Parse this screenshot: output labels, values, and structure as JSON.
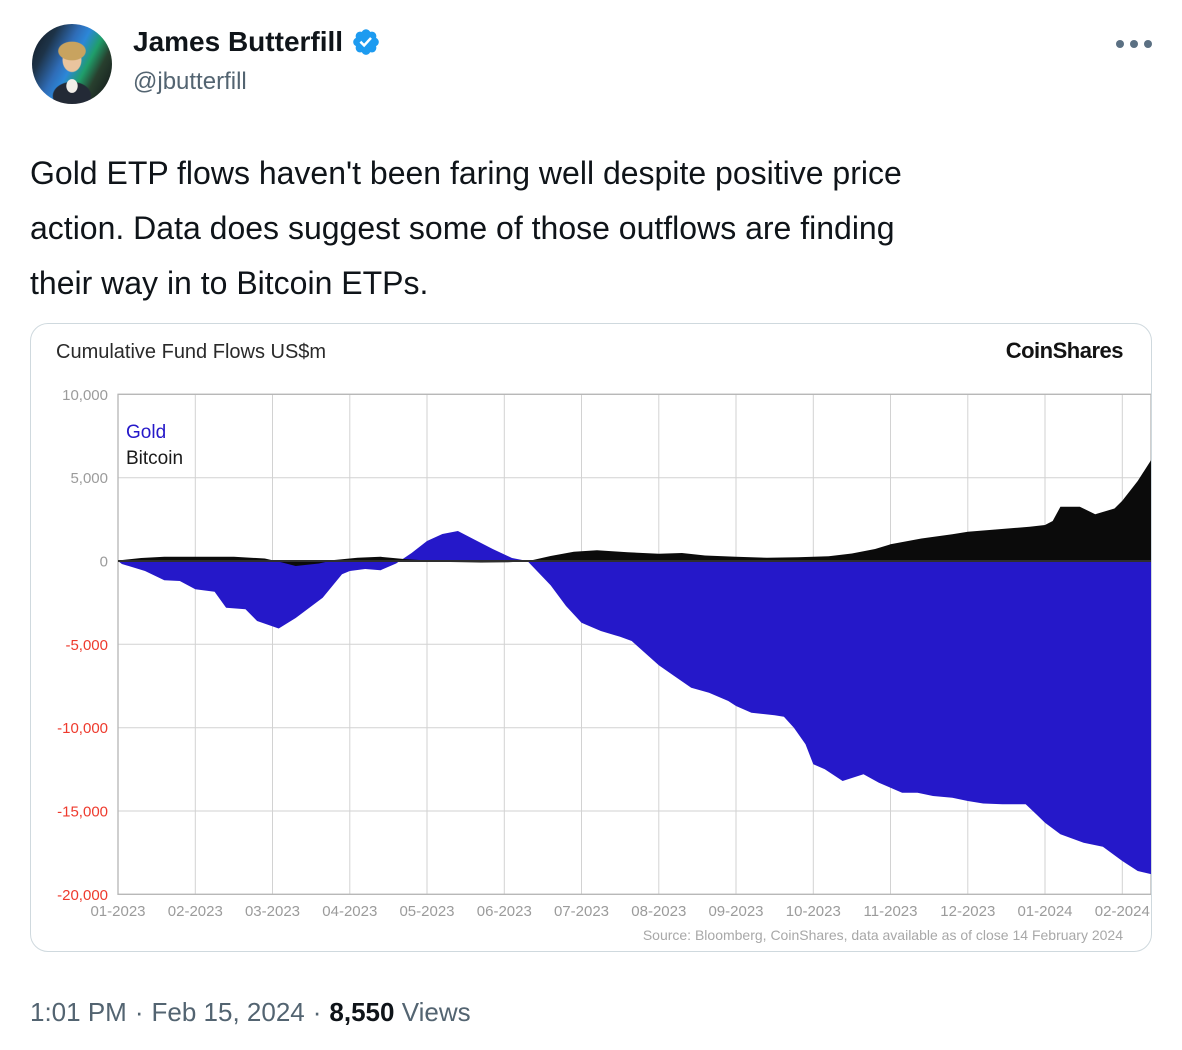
{
  "tweet": {
    "author": {
      "name": "James Butterfill",
      "handle": "@jbutterfill"
    },
    "verified": true,
    "body_lines": [
      "Gold ETP flows haven't been faring well despite positive price",
      "action. Data does suggest some of those outflows are finding",
      "their way in to Bitcoin ETPs."
    ],
    "footer": {
      "time": "1:01 PM",
      "separator": "·",
      "date": "Feb 15, 2024",
      "views_count": "8,550",
      "views_label": "Views"
    }
  },
  "chart_card": {
    "title": "Cumulative Fund Flows US$m",
    "brand": "CoinShares",
    "source_note": "Source: Bloomberg, CoinShares, data available as of close 14 February 2024"
  },
  "chart_data": {
    "type": "area",
    "title": "Cumulative Fund Flows US$m",
    "unit": "US$m",
    "grid": true,
    "legend_position": "top-left",
    "x_tick_labels": [
      "01-2023",
      "02-2023",
      "03-2023",
      "04-2023",
      "05-2023",
      "06-2023",
      "07-2023",
      "08-2023",
      "09-2023",
      "10-2023",
      "11-2023",
      "12-2023",
      "01-2024",
      "02-2024"
    ],
    "y_ticks": [
      10000,
      5000,
      0,
      -5000,
      -10000,
      -15000,
      -20000
    ],
    "ylim": [
      -20000,
      10000
    ],
    "x_max_index": 13.38,
    "axis_colors": {
      "positive_label": "#9b9b9b",
      "negative_label": "#ee3a2d",
      "grid": "#d2d2d2",
      "border": "#b5b5b5",
      "zero_line": "#2e2e2e"
    },
    "series": [
      {
        "name": "Gold",
        "color": "#2518C9",
        "legend_color": "#2518C9",
        "points": [
          [
            0,
            0
          ],
          [
            0.05,
            -180
          ],
          [
            0.35,
            -600
          ],
          [
            0.6,
            -1150
          ],
          [
            0.8,
            -1200
          ],
          [
            1,
            -1700
          ],
          [
            1.25,
            -1850
          ],
          [
            1.4,
            -2800
          ],
          [
            1.65,
            -2900
          ],
          [
            1.8,
            -3600
          ],
          [
            2.08,
            -4050
          ],
          [
            2.3,
            -3420
          ],
          [
            2.65,
            -2200
          ],
          [
            2.9,
            -800
          ],
          [
            3,
            -600
          ],
          [
            3.2,
            -480
          ],
          [
            3.4,
            -550
          ],
          [
            3.6,
            -150
          ],
          [
            3.8,
            480
          ],
          [
            4,
            1200
          ],
          [
            4.2,
            1620
          ],
          [
            4.4,
            1800
          ],
          [
            4.6,
            1320
          ],
          [
            4.85,
            720
          ],
          [
            5.1,
            180
          ],
          [
            5.3,
            0
          ],
          [
            5.6,
            -1450
          ],
          [
            5.8,
            -2700
          ],
          [
            6,
            -3700
          ],
          [
            6.25,
            -4200
          ],
          [
            6.5,
            -4550
          ],
          [
            6.65,
            -4800
          ],
          [
            7,
            -6250
          ],
          [
            7.2,
            -6900
          ],
          [
            7.42,
            -7600
          ],
          [
            7.65,
            -7900
          ],
          [
            7.9,
            -8400
          ],
          [
            8,
            -8700
          ],
          [
            8.2,
            -9100
          ],
          [
            8.5,
            -9250
          ],
          [
            8.62,
            -9350
          ],
          [
            8.75,
            -10000
          ],
          [
            8.9,
            -11000
          ],
          [
            9,
            -12200
          ],
          [
            9.15,
            -12500
          ],
          [
            9.38,
            -13200
          ],
          [
            9.65,
            -12800
          ],
          [
            9.85,
            -13300
          ],
          [
            10,
            -13600
          ],
          [
            10.15,
            -13900
          ],
          [
            10.35,
            -13900
          ],
          [
            10.55,
            -14100
          ],
          [
            10.8,
            -14200
          ],
          [
            11,
            -14400
          ],
          [
            11.2,
            -14550
          ],
          [
            11.45,
            -14600
          ],
          [
            11.75,
            -14600
          ],
          [
            11.9,
            -15250
          ],
          [
            12,
            -15700
          ],
          [
            12.2,
            -16400
          ],
          [
            12.5,
            -16900
          ],
          [
            12.75,
            -17150
          ],
          [
            13,
            -18000
          ],
          [
            13.2,
            -18600
          ],
          [
            13.38,
            -18800
          ]
        ]
      },
      {
        "name": "Bitcoin",
        "color": "#0b0b0b",
        "legend_color": "#1a1a1a",
        "points": [
          [
            0,
            30
          ],
          [
            0.3,
            180
          ],
          [
            0.6,
            250
          ],
          [
            1,
            260
          ],
          [
            1.5,
            250
          ],
          [
            1.9,
            150
          ],
          [
            2.1,
            -60
          ],
          [
            2.3,
            -300
          ],
          [
            2.6,
            -150
          ],
          [
            2.8,
            60
          ],
          [
            3.1,
            200
          ],
          [
            3.4,
            250
          ],
          [
            3.7,
            120
          ],
          [
            4,
            30
          ],
          [
            4.3,
            -60
          ],
          [
            4.7,
            -90
          ],
          [
            5.05,
            -70
          ],
          [
            5.3,
            -20
          ],
          [
            5.6,
            300
          ],
          [
            5.9,
            550
          ],
          [
            6.2,
            650
          ],
          [
            6.6,
            530
          ],
          [
            7,
            430
          ],
          [
            7.3,
            480
          ],
          [
            7.6,
            330
          ],
          [
            8,
            250
          ],
          [
            8.4,
            190
          ],
          [
            8.8,
            220
          ],
          [
            9.2,
            280
          ],
          [
            9.5,
            450
          ],
          [
            9.8,
            720
          ],
          [
            10,
            1000
          ],
          [
            10.4,
            1350
          ],
          [
            10.8,
            1600
          ],
          [
            11,
            1760
          ],
          [
            11.4,
            1900
          ],
          [
            11.8,
            2060
          ],
          [
            12,
            2160
          ],
          [
            12.1,
            2400
          ],
          [
            12.2,
            3250
          ],
          [
            12.45,
            3260
          ],
          [
            12.65,
            2800
          ],
          [
            12.9,
            3150
          ],
          [
            13,
            3620
          ],
          [
            13.2,
            4800
          ],
          [
            13.38,
            6100
          ]
        ]
      }
    ]
  }
}
